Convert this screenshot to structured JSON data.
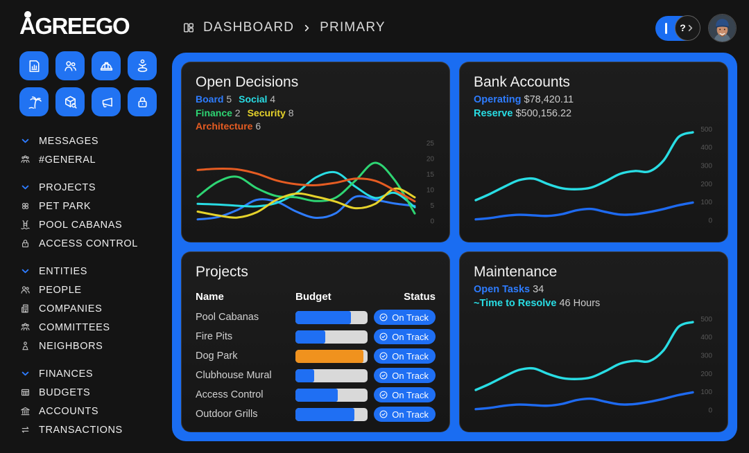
{
  "app": {
    "logo_text": "AGREEGO"
  },
  "topbar": {
    "breadcrumb": {
      "section": "DASHBOARD",
      "page": "PRIMARY"
    },
    "prompt": {
      "value": "",
      "help_glyph": "?"
    }
  },
  "sidebar": {
    "quick_buttons": [
      {
        "icon": "chart-document"
      },
      {
        "icon": "users"
      },
      {
        "icon": "hard-hat"
      },
      {
        "icon": "child"
      },
      {
        "icon": "palm-tree"
      },
      {
        "icon": "package-search"
      },
      {
        "icon": "megaphone"
      },
      {
        "icon": "padlock"
      }
    ],
    "sections": [
      {
        "label": "MESSAGES",
        "items": [
          {
            "icon": "user-group",
            "label": "#GENERAL"
          }
        ]
      },
      {
        "label": "PROJECTS",
        "items": [
          {
            "icon": "clover",
            "label": "PET PARK"
          },
          {
            "icon": "pool-ladder",
            "label": "POOL CABANAS"
          },
          {
            "icon": "padlock",
            "label": "ACCESS CONTROL"
          }
        ]
      },
      {
        "label": "ENTITIES",
        "items": [
          {
            "icon": "users",
            "label": "PEOPLE"
          },
          {
            "icon": "building",
            "label": "COMPANIES"
          },
          {
            "icon": "user-group",
            "label": "COMMITTEES"
          },
          {
            "icon": "person",
            "label": "NEIGHBORS"
          }
        ]
      },
      {
        "label": "FINANCES",
        "items": [
          {
            "icon": "table-grid",
            "label": "BUDGETS"
          },
          {
            "icon": "bank",
            "label": "ACCOUNTS"
          },
          {
            "icon": "transfer-arrows",
            "label": "TRANSACTIONS"
          }
        ]
      }
    ]
  },
  "cards": {
    "open_decisions": {
      "title": "Open Decisions",
      "legend": [
        {
          "label": "Board",
          "value": "5",
          "color": "#2e7cff"
        },
        {
          "label": "Social",
          "value": "4",
          "color": "#29dde4"
        },
        {
          "label": "Finance",
          "value": "2",
          "color": "#2ed573"
        },
        {
          "label": "Security",
          "value": "8",
          "color": "#e6d32b"
        },
        {
          "label": "Architecture",
          "value": "6",
          "color": "#e55c22"
        }
      ]
    },
    "bank_accounts": {
      "title": "Bank Accounts",
      "stats": [
        {
          "label": "Operating",
          "value": "$78,420.11",
          "color": "#2e7cff"
        },
        {
          "label": "Reserve",
          "value": "$500,156.22",
          "color": "#29dde4"
        }
      ]
    },
    "projects": {
      "title": "Projects",
      "columns": [
        "Name",
        "Budget",
        "Status"
      ],
      "rows": [
        {
          "name": "Pool Cabanas",
          "budget_pct": 77,
          "bar_color": "#1f6ff3",
          "status": "On Track"
        },
        {
          "name": "Fire Pits",
          "budget_pct": 41,
          "bar_color": "#1f6ff3",
          "status": "On Track"
        },
        {
          "name": "Dog Park",
          "budget_pct": 94,
          "bar_color": "#f0921e",
          "status": "On Track"
        },
        {
          "name": "Clubhouse Mural",
          "budget_pct": 26,
          "bar_color": "#1f6ff3",
          "status": "On Track"
        },
        {
          "name": "Access Control",
          "budget_pct": 59,
          "bar_color": "#1f6ff3",
          "status": "On Track"
        },
        {
          "name": "Outdoor Grills",
          "budget_pct": 82,
          "bar_color": "#1f6ff3",
          "status": "On Track"
        }
      ]
    },
    "maintenance": {
      "title": "Maintenance",
      "stats": [
        {
          "label": "Open Tasks",
          "value": "34",
          "color": "#2e7cff"
        },
        {
          "label": "~Time to Resolve",
          "value": "46 Hours",
          "color": "#29dde4"
        }
      ]
    }
  },
  "chart_data": [
    {
      "id": "open-decisions",
      "type": "line",
      "title": "Open Decisions",
      "xlabel": "",
      "ylabel": "",
      "ylim": [
        0,
        26.5
      ],
      "yticks": [
        25,
        20,
        15,
        10,
        5,
        0
      ],
      "grid": false,
      "legend_position": "top-left",
      "stroke_width": 3,
      "series": [
        {
          "name": "Board",
          "color": "#2e7cff",
          "values": [
            0.5,
            1.2,
            3.5,
            6.8,
            6.2,
            3.0,
            1.0,
            2.5,
            7.8,
            6.8,
            5.6,
            4.8
          ]
        },
        {
          "name": "Social",
          "color": "#29dde4",
          "values": [
            5.5,
            5.3,
            4.9,
            4.7,
            5.8,
            9.0,
            14.0,
            15.6,
            11.0,
            7.4,
            9.0,
            4.4
          ]
        },
        {
          "name": "Finance",
          "color": "#2ed573",
          "values": [
            7.8,
            12.5,
            14.2,
            10.5,
            8.0,
            7.6,
            6.4,
            7.5,
            13.0,
            18.7,
            13.0,
            2.4
          ]
        },
        {
          "name": "Security",
          "color": "#e6d32b",
          "values": [
            3.0,
            1.8,
            1.1,
            2.8,
            6.8,
            8.8,
            7.8,
            6.2,
            4.1,
            5.5,
            10.4,
            7.6
          ]
        },
        {
          "name": "Architecture",
          "color": "#e55c22",
          "values": [
            16.4,
            16.8,
            16.6,
            15.2,
            13.0,
            11.8,
            11.5,
            12.3,
            13.6,
            12.9,
            9.8,
            6.3
          ]
        }
      ]
    },
    {
      "id": "bank-accounts",
      "type": "line",
      "title": "Bank Accounts",
      "xlabel": "",
      "ylabel": "",
      "ylim": [
        0,
        520
      ],
      "yticks": [
        500,
        400,
        300,
        200,
        100,
        0
      ],
      "grid": false,
      "legend_position": "none",
      "stroke_width": 3.4,
      "series": [
        {
          "name": "Operating",
          "color": "#1e6af0",
          "values": [
            5,
            12,
            24,
            30,
            27,
            24,
            34,
            55,
            62,
            45,
            31,
            33,
            45,
            62,
            82,
            97
          ]
        },
        {
          "name": "Reserve",
          "color": "#29dde4",
          "values": [
            110,
            145,
            185,
            220,
            228,
            198,
            175,
            170,
            180,
            215,
            255,
            270,
            268,
            330,
            455,
            482
          ]
        }
      ]
    },
    {
      "id": "maintenance",
      "type": "line",
      "title": "Maintenance",
      "xlabel": "",
      "ylabel": "",
      "ylim": [
        0,
        520
      ],
      "yticks": [
        500,
        400,
        300,
        200,
        100,
        0
      ],
      "grid": false,
      "legend_position": "none",
      "stroke_width": 3.4,
      "series": [
        {
          "name": "Open Tasks",
          "color": "#1e6af0",
          "values": [
            5,
            12,
            24,
            30,
            27,
            24,
            34,
            55,
            62,
            45,
            31,
            33,
            45,
            62,
            82,
            97
          ]
        },
        {
          "name": "Time to Resolve",
          "color": "#29dde4",
          "values": [
            110,
            145,
            185,
            220,
            228,
            198,
            175,
            170,
            180,
            215,
            255,
            270,
            268,
            330,
            455,
            482
          ]
        }
      ]
    }
  ]
}
